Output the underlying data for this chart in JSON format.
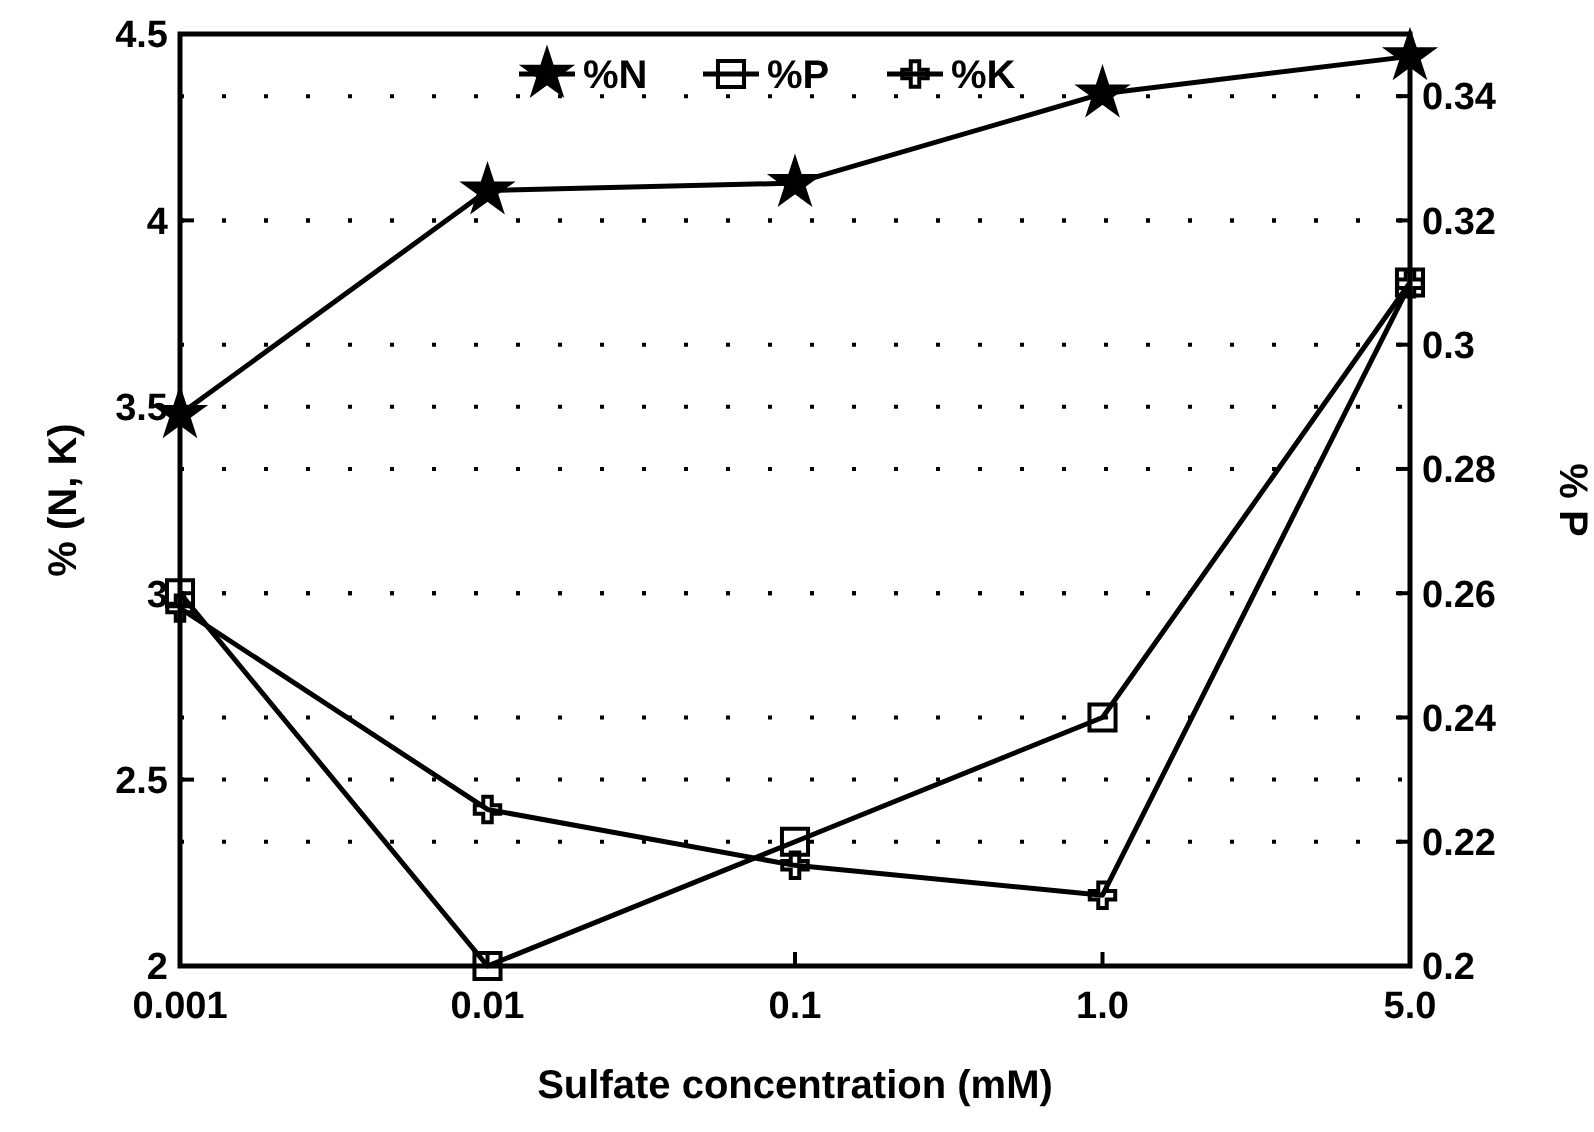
{
  "chart_data": {
    "type": "line",
    "xlabel": "Sulfate concentration (mM)",
    "ylabel": "% (N, K)",
    "y2label": "% P",
    "categories": [
      "0.001",
      "0.01",
      "0.1",
      "1.0",
      "5.0"
    ],
    "series": [
      {
        "name": "%N",
        "color": "#000000",
        "marker": "star",
        "values": [
          3.48,
          4.08,
          4.1,
          4.34,
          4.44
        ]
      },
      {
        "name": "%P",
        "color": "#000000",
        "marker": "square",
        "axis": "y2",
        "values": [
          0.26,
          0.2,
          0.22,
          0.24,
          0.31
        ]
      },
      {
        "name": "%K",
        "color": "#000000",
        "marker": "cross",
        "values": [
          2.96,
          2.42,
          2.27,
          2.19,
          3.83
        ]
      }
    ],
    "ylim": [
      2,
      4.5
    ],
    "yticks": [
      2,
      2.5,
      3,
      3.5,
      4,
      4.5
    ],
    "y2lim": [
      0.2,
      0.35
    ],
    "y2ticks": [
      0.2,
      0.22,
      0.24,
      0.26,
      0.28,
      0.3,
      0.32,
      0.34
    ],
    "grid": true,
    "legend": "top",
    "line_style": "solid"
  }
}
